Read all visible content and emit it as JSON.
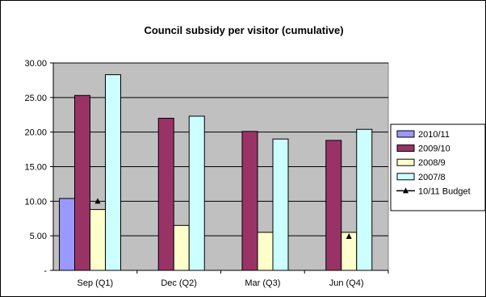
{
  "chart_data": {
    "type": "bar",
    "title": "Council subsidy per visitor (cumulative)",
    "xlabel": "",
    "ylabel": "",
    "ylim": [
      0,
      30
    ],
    "y_ticks": [
      "-",
      "5.00",
      "10.00",
      "15.00",
      "20.00",
      "25.00",
      "30.00"
    ],
    "categories": [
      "Sep (Q1)",
      "Dec (Q2)",
      "Mar (Q3)",
      "Jun (Q4)"
    ],
    "grid": true,
    "plot_background": "#c0c0c0",
    "legend_position": "right",
    "series": [
      {
        "name": "2010/11",
        "type": "bar",
        "color": "#9999ff",
        "values": [
          10.4,
          null,
          null,
          null
        ]
      },
      {
        "name": "2009/10",
        "type": "bar",
        "color": "#993366",
        "values": [
          25.3,
          22.0,
          20.1,
          18.8
        ]
      },
      {
        "name": "2008/9",
        "type": "bar",
        "color": "#ffffcc",
        "values": [
          8.8,
          6.5,
          5.5,
          5.5
        ]
      },
      {
        "name": "2007/8",
        "type": "bar",
        "color": "#ccffff",
        "values": [
          28.3,
          22.3,
          19.0,
          20.4
        ]
      },
      {
        "name": "10/11 Budget",
        "type": "marker",
        "marker": "triangle",
        "color": "#000000",
        "values": [
          10.0,
          null,
          null,
          4.9
        ]
      }
    ]
  }
}
